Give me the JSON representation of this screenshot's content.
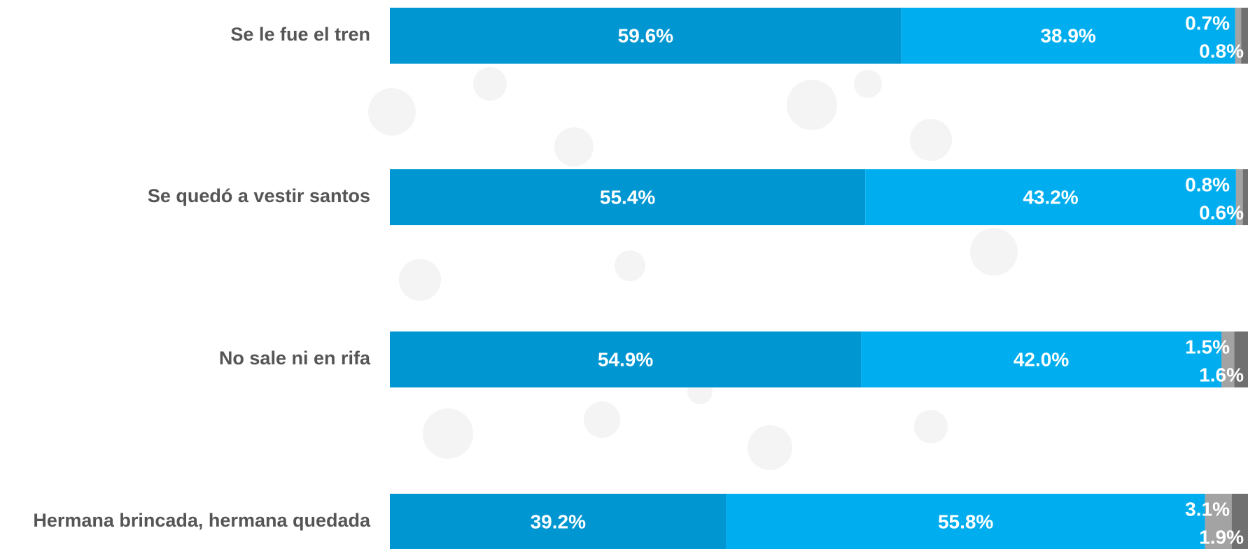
{
  "chart_data": {
    "type": "stacked-bar-horizontal",
    "categories": [
      "Se le fue el tren",
      "Se quedó a vestir santos",
      "No sale ni en rifa",
      "Hermana brincada, hermana quedada"
    ],
    "series": [
      {
        "color": "#0096d1",
        "values": [
          59.6,
          55.4,
          54.9,
          39.2
        ],
        "value_labels": [
          "59.6%",
          "55.4%",
          "54.9%",
          "39.2%"
        ]
      },
      {
        "color": "#00aeef",
        "values": [
          38.9,
          43.2,
          42.0,
          55.8
        ],
        "value_labels": [
          "38.9%",
          "43.2%",
          "42.0%",
          "55.8%"
        ]
      },
      {
        "color": "#a3a3a3",
        "values": [
          0.7,
          0.8,
          1.5,
          3.1
        ],
        "value_labels": [
          "0.7%",
          "0.8%",
          "1.5%",
          "3.1%"
        ]
      },
      {
        "color": "#707070",
        "values": [
          0.8,
          0.6,
          1.6,
          1.9
        ],
        "value_labels": [
          "0.8%",
          "0.6%",
          "1.6%",
          "1.9%"
        ]
      }
    ]
  }
}
